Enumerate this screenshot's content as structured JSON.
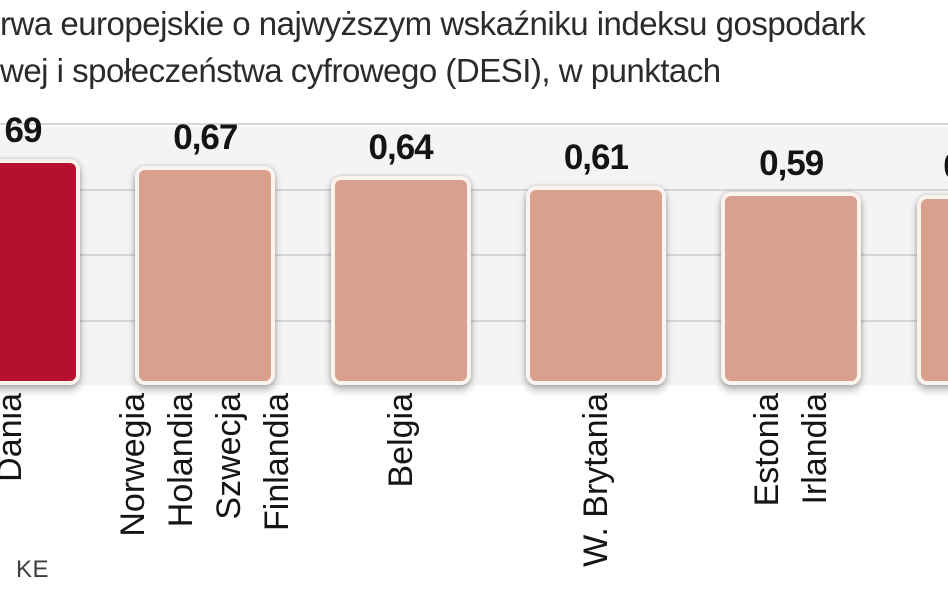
{
  "title": {
    "line1": "rwa europejskie o najwyższym wskaźniku indeksu gospodark",
    "line2": "wej i społeczeństwa cyfrowego (DESI), w punktach"
  },
  "source_label": "KE",
  "colors": {
    "highlight_bar": "#b6102f",
    "regular_bar": "#d9a08d",
    "bar_border": "#fbf3ee",
    "grid_line": "#d6d6d8",
    "plot_bg": "#f4f4f5",
    "title_text": "#2b2b2b",
    "label_text": "#151515"
  },
  "chart_data": {
    "type": "bar",
    "title": "rwa europejskie o najwyższym wskaźniku indeksu gospodark / wej i społeczeństwa cyfrowego (DESI), w punktach",
    "ylabel": "",
    "ylim": [
      0,
      0.84
    ],
    "grid": "horizontal",
    "grid_values": [
      0.2,
      0.4,
      0.6,
      0.8
    ],
    "legend": "none",
    "categories": [
      "Dania",
      "Norwegia / Holandia / Szwecja / Finlandia",
      "Belgia",
      "W. Brytania",
      "Estonia / Irlandia",
      ""
    ],
    "values": [
      0.69,
      0.67,
      0.64,
      0.61,
      0.59,
      0.58
    ],
    "bars": [
      {
        "value": 0.69,
        "value_label": "69",
        "labels": [
          "Dania"
        ],
        "highlight": true,
        "partial": "left",
        "label_shift": 13
      },
      {
        "value": 0.67,
        "value_label": "0,67",
        "labels": [
          "Norwegia",
          "Holandia",
          "Szwecja",
          "Finlandia"
        ]
      },
      {
        "value": 0.64,
        "value_label": "0,64",
        "labels": [
          "Belgia"
        ]
      },
      {
        "value": 0.61,
        "value_label": "0,61",
        "labels": [
          "W. Brytania"
        ]
      },
      {
        "value": 0.59,
        "value_label": "0,59",
        "labels": [
          "Estonia",
          "Irlandia"
        ]
      },
      {
        "value": 0.58,
        "value_label": "0",
        "labels": [],
        "partial": "right",
        "label_shift": -34,
        "value_estimated": true
      }
    ]
  }
}
